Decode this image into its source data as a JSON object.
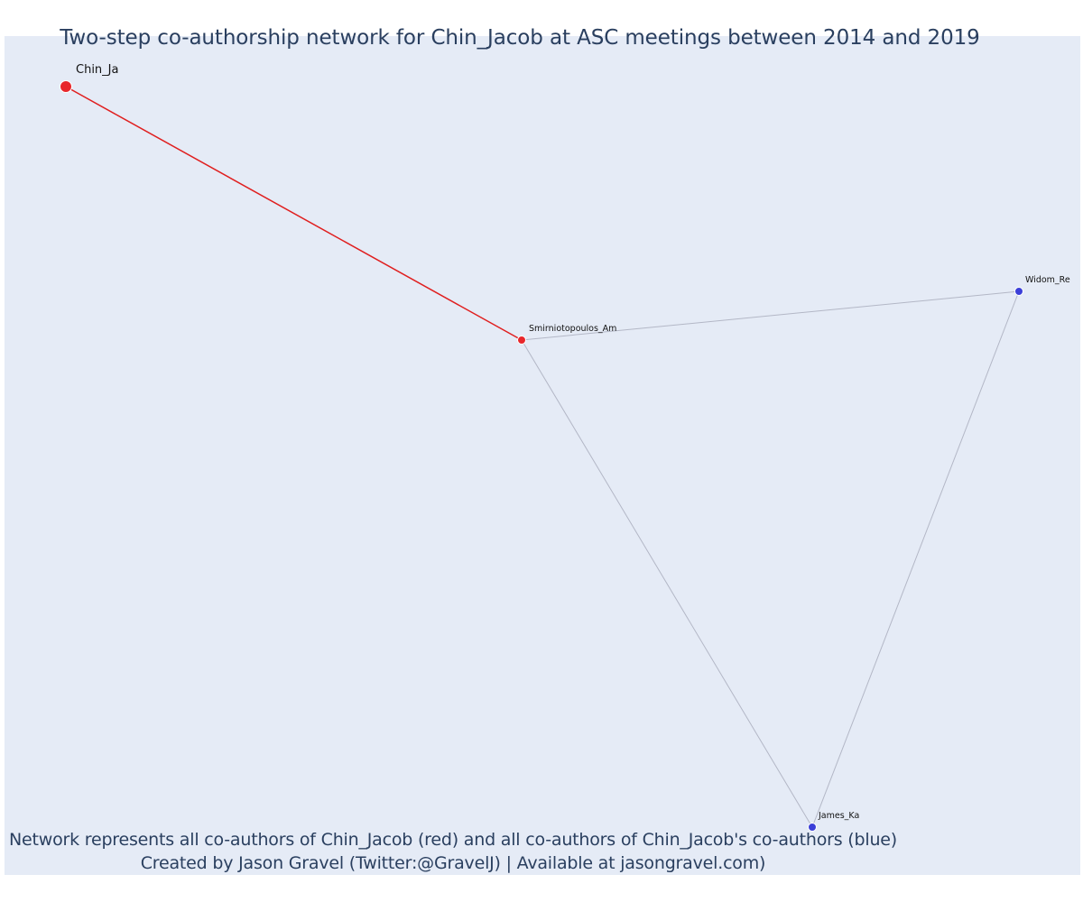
{
  "title": "Two-step co-authorship network for Chin_Jacob at ASC meetings between 2014 and 2019",
  "caption": {
    "line1": "Network represents all co-authors of Chin_Jacob (red) and all co-authors of Chin_Jacob's co-authors (blue)",
    "line2": "Created by Jason Gravel (Twitter:@GravelJ) | Available at jasongravel.com)"
  },
  "colors": {
    "background": "#e5ebf6",
    "first_degree": "#e8272b",
    "second_degree": "#3b3fd8",
    "edge_primary": "#e01f1f",
    "edge_secondary": "#b3b7c6",
    "text": "#2a3f5f"
  },
  "chart_data": {
    "type": "network",
    "nodes": [
      {
        "id": "Chin_Ja",
        "label": "Chin_Ja",
        "group": "ego",
        "color": "red"
      },
      {
        "id": "Smirniotopoulos_Am",
        "label": "Smirniotopoulos_Am",
        "group": "co-author",
        "color": "red"
      },
      {
        "id": "Widom_Re",
        "label": "Widom_Re",
        "group": "co-author of co-author",
        "color": "blue"
      },
      {
        "id": "James_Ka",
        "label": "James_Ka",
        "group": "co-author of co-author",
        "color": "blue"
      }
    ],
    "edges": [
      {
        "source": "Chin_Ja",
        "target": "Smirniotopoulos_Am",
        "color": "red"
      },
      {
        "source": "Smirniotopoulos_Am",
        "target": "Widom_Re",
        "color": "grey"
      },
      {
        "source": "Smirniotopoulos_Am",
        "target": "James_Ka",
        "color": "grey"
      },
      {
        "source": "Widom_Re",
        "target": "James_Ka",
        "color": "grey"
      }
    ]
  }
}
